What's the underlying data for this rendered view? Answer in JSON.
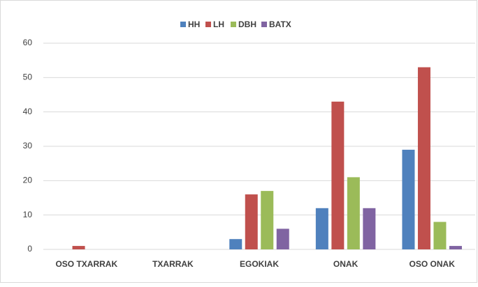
{
  "chart_data": {
    "type": "bar",
    "categories": [
      "OSO TXARRAK",
      "TXARRAK",
      "EGOKIAK",
      "ONAK",
      "OSO ONAK"
    ],
    "series": [
      {
        "name": "HH",
        "color": "#4f81bd",
        "values": [
          0,
          0,
          3,
          12,
          29
        ]
      },
      {
        "name": "LH",
        "color": "#c0504d",
        "values": [
          1,
          0,
          16,
          43,
          53
        ]
      },
      {
        "name": "DBH",
        "color": "#9bbb59",
        "values": [
          0,
          0,
          17,
          21,
          8
        ]
      },
      {
        "name": "BATX",
        "color": "#8064a2",
        "values": [
          0,
          0,
          6,
          12,
          1
        ]
      }
    ],
    "ylim": [
      0,
      60
    ],
    "yticks": [
      0,
      10,
      20,
      30,
      40,
      50,
      60
    ],
    "grid": true,
    "legend": "top"
  }
}
